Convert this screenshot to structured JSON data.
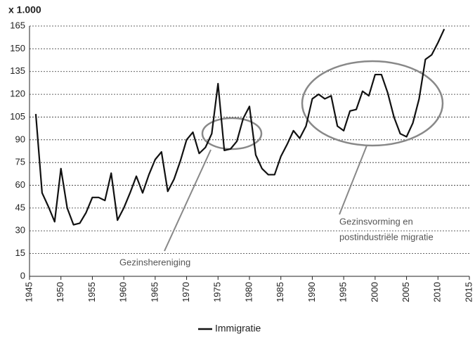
{
  "chart_data": {
    "type": "line",
    "ylabel": "x 1.000",
    "x": [
      1946,
      1947,
      1948,
      1949,
      1950,
      1951,
      1952,
      1953,
      1954,
      1955,
      1956,
      1957,
      1958,
      1959,
      1960,
      1961,
      1962,
      1963,
      1964,
      1965,
      1966,
      1967,
      1968,
      1969,
      1970,
      1971,
      1972,
      1973,
      1974,
      1975,
      1976,
      1977,
      1978,
      1979,
      1980,
      1981,
      1982,
      1983,
      1984,
      1985,
      1986,
      1987,
      1988,
      1989,
      1990,
      1991,
      1992,
      1993,
      1994,
      1995,
      1996,
      1997,
      1998,
      1999,
      2000,
      2001,
      2002,
      2003,
      2004,
      2005,
      2006,
      2007,
      2008,
      2009,
      2010,
      2011
    ],
    "series": [
      {
        "name": "Immigratie",
        "color": "#111111",
        "values": [
          107,
          55,
          46,
          36,
          71,
          45,
          34,
          35,
          42,
          52,
          52,
          50,
          68,
          37,
          45,
          55,
          66,
          55,
          67,
          77,
          82,
          56,
          64,
          76,
          90,
          95,
          81,
          85,
          94,
          127,
          83,
          84,
          89,
          104,
          112,
          80,
          71,
          67,
          67,
          79,
          87,
          96,
          91,
          99,
          117,
          120,
          117,
          119,
          99,
          96,
          109,
          110,
          122,
          119,
          133,
          133,
          121,
          105,
          94,
          92,
          101,
          117,
          143,
          146,
          154,
          163
        ]
      }
    ],
    "xlim": [
      1945,
      2015
    ],
    "xticks": [
      1945,
      1950,
      1955,
      1960,
      1965,
      1970,
      1975,
      1980,
      1985,
      1990,
      1995,
      2000,
      2005,
      2010,
      2015
    ],
    "ylim": [
      0,
      165
    ],
    "yticks": [
      0,
      15,
      30,
      45,
      60,
      75,
      90,
      105,
      120,
      135,
      150,
      165
    ],
    "grid": true,
    "legend": "bottom",
    "annotations": [
      {
        "text": "Gezinshereniging"
      },
      {
        "lines": [
          "Gezinsvorming en",
          "postindustriële migratie"
        ]
      }
    ]
  }
}
